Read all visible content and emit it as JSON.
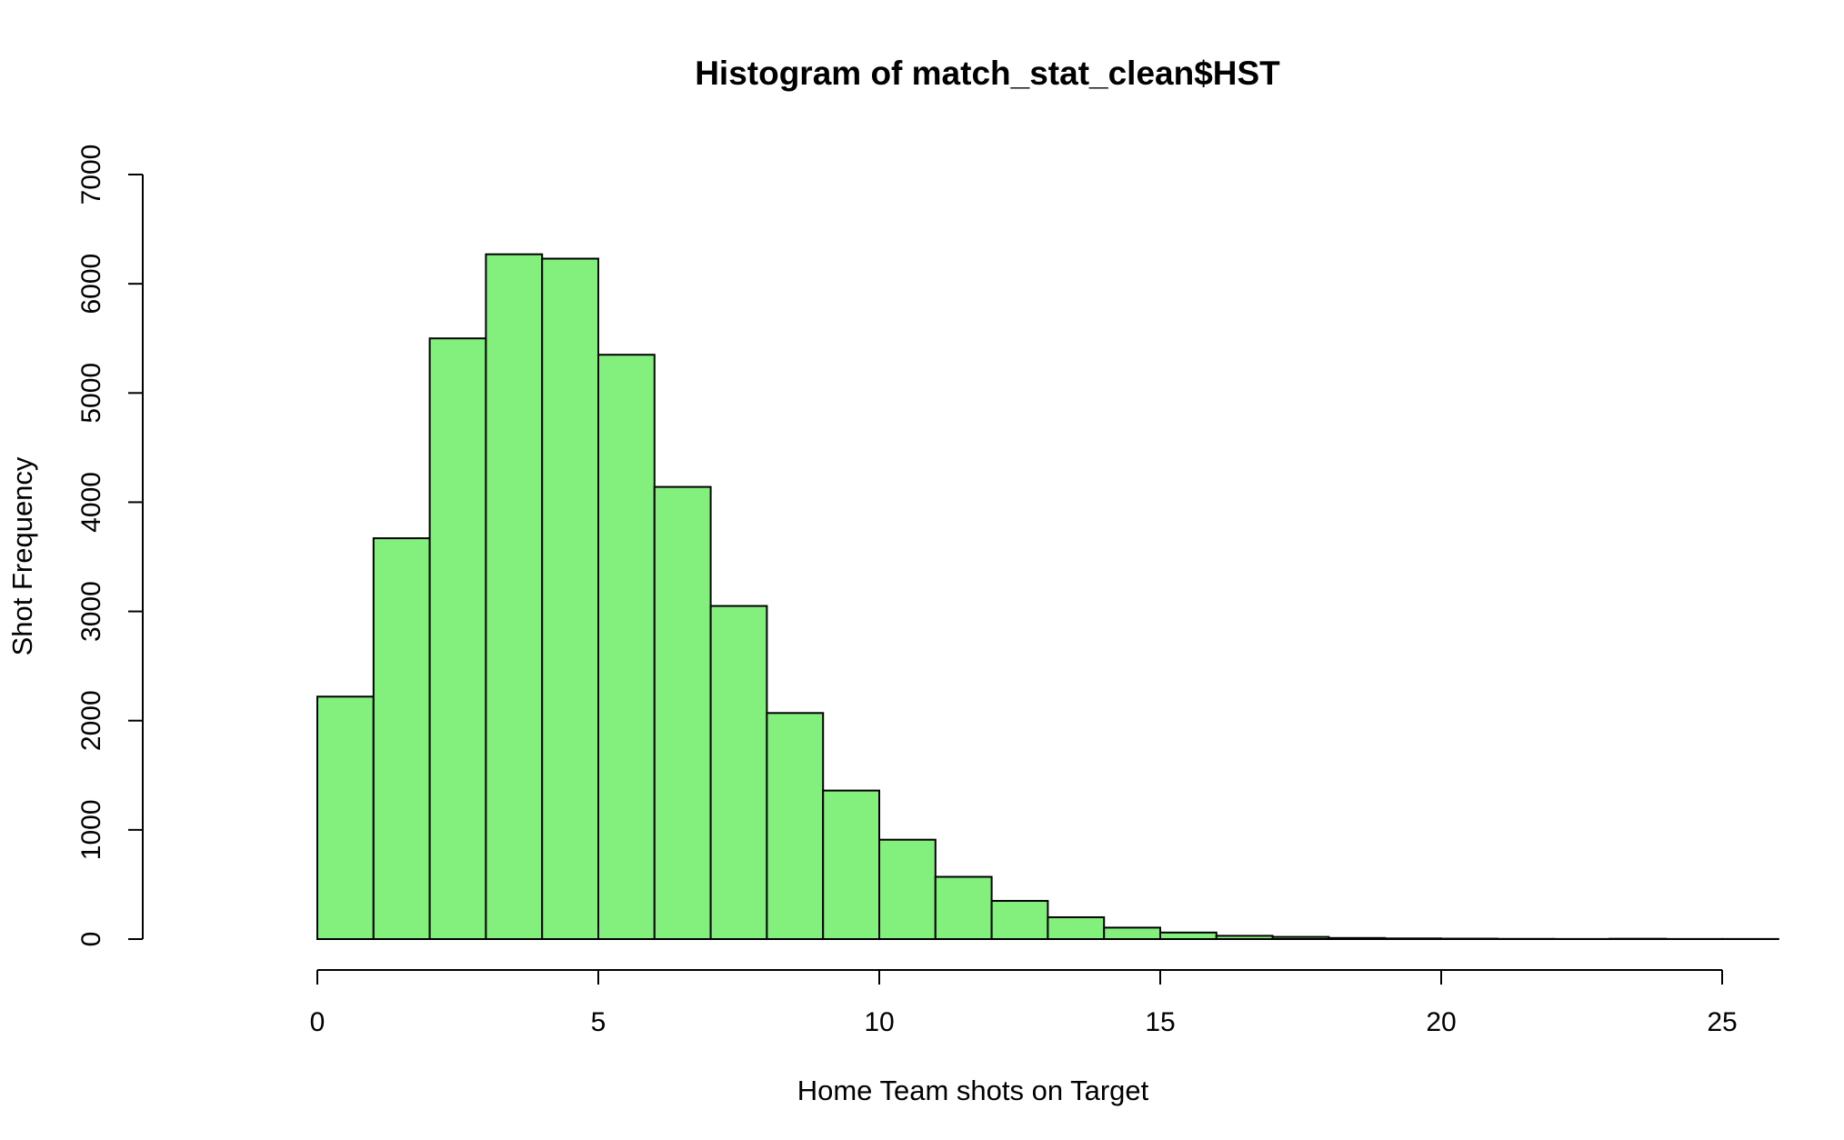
{
  "chart_data": {
    "type": "bar",
    "histogram": true,
    "title": "Histogram of match_stat_clean$HST",
    "xlabel": "Home Team shots on Target",
    "ylabel": "Shot Frequency",
    "bin_width": 1,
    "bin_edges": [
      0,
      1,
      2,
      3,
      4,
      5,
      6,
      7,
      8,
      9,
      10,
      11,
      12,
      13,
      14,
      15,
      16,
      17,
      18,
      19,
      20,
      21,
      22,
      23,
      24,
      25,
      26
    ],
    "values": [
      2220,
      3670,
      5500,
      6270,
      6230,
      5350,
      4140,
      3050,
      2070,
      1360,
      910,
      570,
      350,
      200,
      105,
      60,
      30,
      20,
      10,
      6,
      4,
      2,
      1,
      3,
      1,
      1
    ],
    "xlim": [
      0,
      26
    ],
    "ylim": [
      0,
      7000
    ],
    "x_ticks": [
      "0",
      "5",
      "10",
      "15",
      "20",
      "25"
    ],
    "y_ticks": [
      "0",
      "1000",
      "2000",
      "3000",
      "4000",
      "5000",
      "6000",
      "7000"
    ],
    "grid": false,
    "bar_color": "#83ef7d",
    "edge_color": "#000000"
  }
}
